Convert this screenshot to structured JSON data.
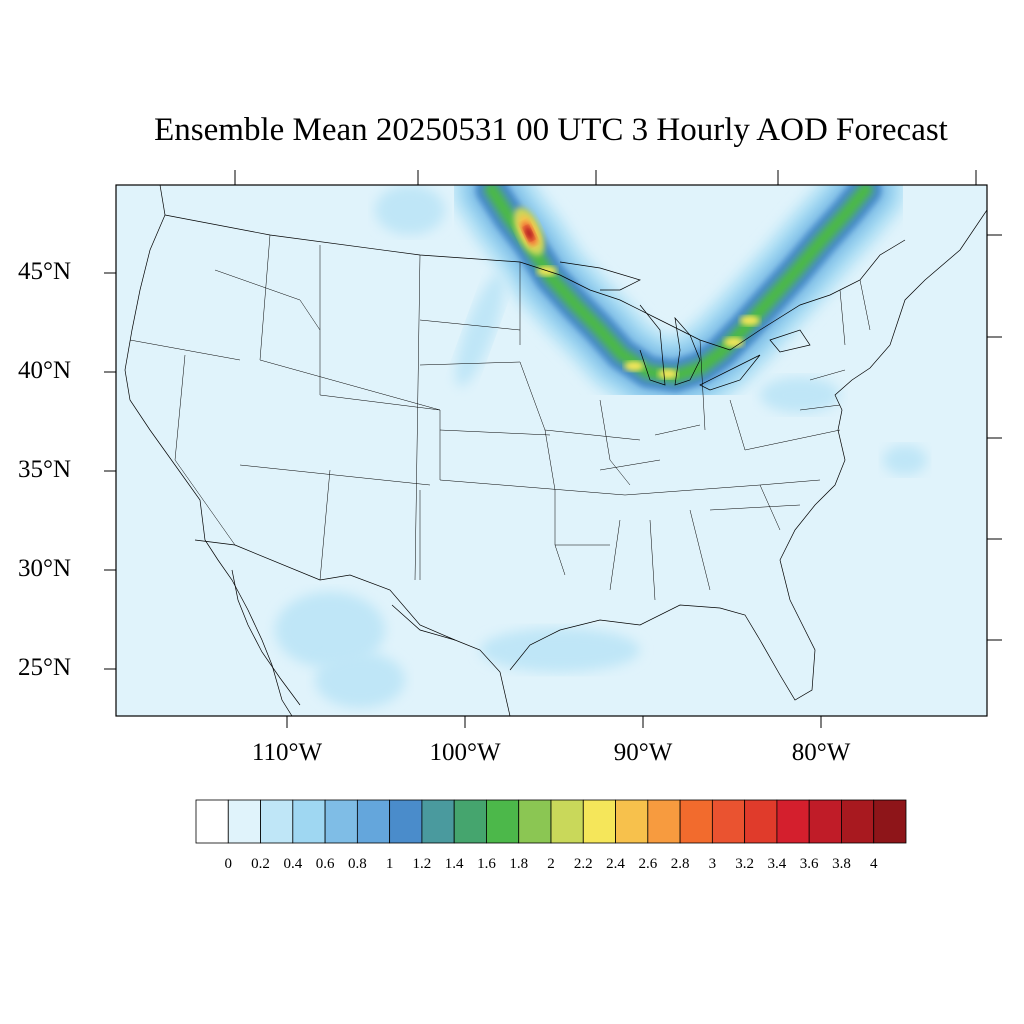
{
  "title": "Ensemble Mean 20250531 00 UTC 3 Hourly AOD Forecast",
  "lat_labels": [
    "45°N",
    "40°N",
    "35°N",
    "30°N",
    "25°N"
  ],
  "lon_labels": [
    "110°W",
    "100°W",
    "90°W",
    "80°W"
  ],
  "colorbar": {
    "labels": [
      "0",
      "0.2",
      "0.4",
      "0.6",
      "0.8",
      "1",
      "1.2",
      "1.4",
      "1.6",
      "1.8",
      "2",
      "2.2",
      "2.4",
      "2.6",
      "2.8",
      "3",
      "3.2",
      "3.4",
      "3.6",
      "3.8",
      "4"
    ],
    "colors": [
      "#ffffff",
      "#e0f3fb",
      "#bfe6f7",
      "#9fd7f2",
      "#7fbde6",
      "#64a6dc",
      "#4a8ccb",
      "#4a9a9e",
      "#45a56e",
      "#4cb84a",
      "#8bc653",
      "#c9d85a",
      "#f5e65a",
      "#f7c14c",
      "#f79b3f",
      "#f26b2d",
      "#ea5330",
      "#e03b2b",
      "#d41f2d",
      "#c01c28",
      "#a8191f",
      "#8e1519"
    ]
  },
  "map": {
    "variable": "AOD",
    "background_color": "#e0f3fb",
    "plume_axis_lonlat": [
      [
        -98.5,
        49.2
      ],
      [
        -97.5,
        47.8
      ],
      [
        -96.4,
        46.5
      ],
      [
        -95.2,
        44.8
      ],
      [
        -93.8,
        43.4
      ],
      [
        -92.5,
        42.2
      ],
      [
        -91.2,
        40.9
      ],
      [
        -89.7,
        40.0
      ],
      [
        -88.2,
        39.8
      ],
      [
        -86.8,
        40.2
      ],
      [
        -85.6,
        41.0
      ],
      [
        -84.3,
        42.2
      ],
      [
        -83.0,
        43.5
      ],
      [
        -81.5,
        45.0
      ],
      [
        -80.0,
        46.6
      ],
      [
        -78.6,
        48.0
      ],
      [
        -77.5,
        49.2
      ]
    ],
    "hotspot_lonlat": [
      -96.4,
      46.6
    ]
  }
}
